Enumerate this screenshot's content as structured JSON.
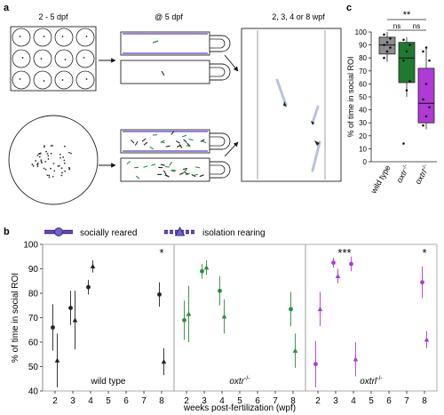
{
  "panels": {
    "a": {
      "label": "a",
      "stage1": "2 - 5 dpf",
      "stage2": "@ 5 dpf",
      "stage3": "2, 3, 4 or 8 wpf"
    },
    "b": {
      "label": "b"
    },
    "c": {
      "label": "c"
    }
  },
  "legend": {
    "social": "socially reared",
    "isolation": "isolation rearing"
  },
  "colors": {
    "wild_type": "#222222",
    "oxtr": "#2e8b3e",
    "oxtrl": "#b03ad6",
    "box_wt": "#8c8c8c",
    "box_oxtr": "#1f7a2f",
    "box_oxtrl": "#b03ad6"
  },
  "chart_data": [
    {
      "type": "scatter",
      "panel": "b",
      "ylabel": "% of time in social ROI",
      "xlabel": "weeks post-fertilization (wpf)",
      "ylim": [
        40,
        100
      ],
      "yticks": [
        40,
        50,
        60,
        70,
        80,
        90,
        100
      ],
      "xticks": [
        2,
        3,
        4,
        5,
        6,
        7,
        8
      ],
      "groups": [
        {
          "name": "wild type",
          "sup": "",
          "significance": [
            {
              "x": 8,
              "label": "*"
            }
          ],
          "series": [
            {
              "name": "socially reared",
              "x": [
                2,
                3,
                4,
                8
              ],
              "y": [
                66,
                74,
                82.5,
                79.5
              ],
              "err": [
                9.5,
                7,
                3,
                5
              ]
            },
            {
              "name": "isolation rearing",
              "x": [
                2,
                3,
                4,
                8
              ],
              "y": [
                52.5,
                69,
                91,
                52
              ],
              "err": [
                11,
                12,
                2.5,
                5.5
              ]
            }
          ]
        },
        {
          "name": "oxtr",
          "sup": "-/-",
          "significance": [],
          "series": [
            {
              "name": "socially reared",
              "x": [
                2,
                3,
                4,
                8
              ],
              "y": [
                69,
                89,
                81,
                73.5
              ],
              "err": [
                8,
                3,
                6,
                7
              ]
            },
            {
              "name": "isolation rearing",
              "x": [
                2,
                3,
                4,
                8
              ],
              "y": [
                71.5,
                90.5,
                70.5,
                56.5
              ],
              "err": [
                11.5,
                3,
                7,
                7
              ]
            }
          ]
        },
        {
          "name": "oxtrl",
          "sup": "-/-",
          "significance": [
            {
              "x": 3.5,
              "label": "***"
            },
            {
              "x": 8,
              "label": "*"
            }
          ],
          "series": [
            {
              "name": "socially reared",
              "x": [
                2,
                3,
                4,
                8
              ],
              "y": [
                51,
                92.5,
                92,
                84.5
              ],
              "err": [
                9.5,
                2,
                3,
                6.5
              ]
            },
            {
              "name": "isolation rearing",
              "x": [
                2,
                3,
                4,
                8
              ],
              "y": [
                73.5,
                87,
                53,
                61
              ],
              "err": [
                7,
                3,
                7,
                3.5
              ]
            }
          ]
        }
      ]
    },
    {
      "type": "box",
      "panel": "c",
      "ylabel": "% of time in social ROI",
      "ylim": [
        0,
        100
      ],
      "yticks": [
        0,
        10,
        20,
        30,
        40,
        50,
        60,
        70,
        80,
        90,
        100
      ],
      "categories": [
        {
          "name": "wild type",
          "sup": ""
        },
        {
          "name": "oxtr",
          "sup": "-/-"
        },
        {
          "name": "oxtrl",
          "sup": "-/-"
        }
      ],
      "boxes": [
        {
          "min": 77,
          "q1": 83,
          "median": 90,
          "q3": 96,
          "max": 100,
          "points": [
            80,
            85,
            88,
            90,
            92,
            95,
            98
          ]
        },
        {
          "min": 50,
          "q1": 61,
          "median": 80,
          "q3": 92,
          "max": 96,
          "points": [
            14,
            55,
            62,
            78,
            85,
            90,
            94
          ]
        },
        {
          "min": 25,
          "q1": 30,
          "median": 45,
          "q3": 72,
          "max": 88,
          "points": [
            28,
            35,
            42,
            48,
            60,
            78,
            85,
            88
          ]
        }
      ],
      "significance": [
        {
          "from": 0,
          "to": 2,
          "label": "**"
        },
        {
          "from": 0,
          "to": 1,
          "label": "ns"
        },
        {
          "from": 1,
          "to": 2,
          "label": "ns"
        }
      ]
    }
  ]
}
